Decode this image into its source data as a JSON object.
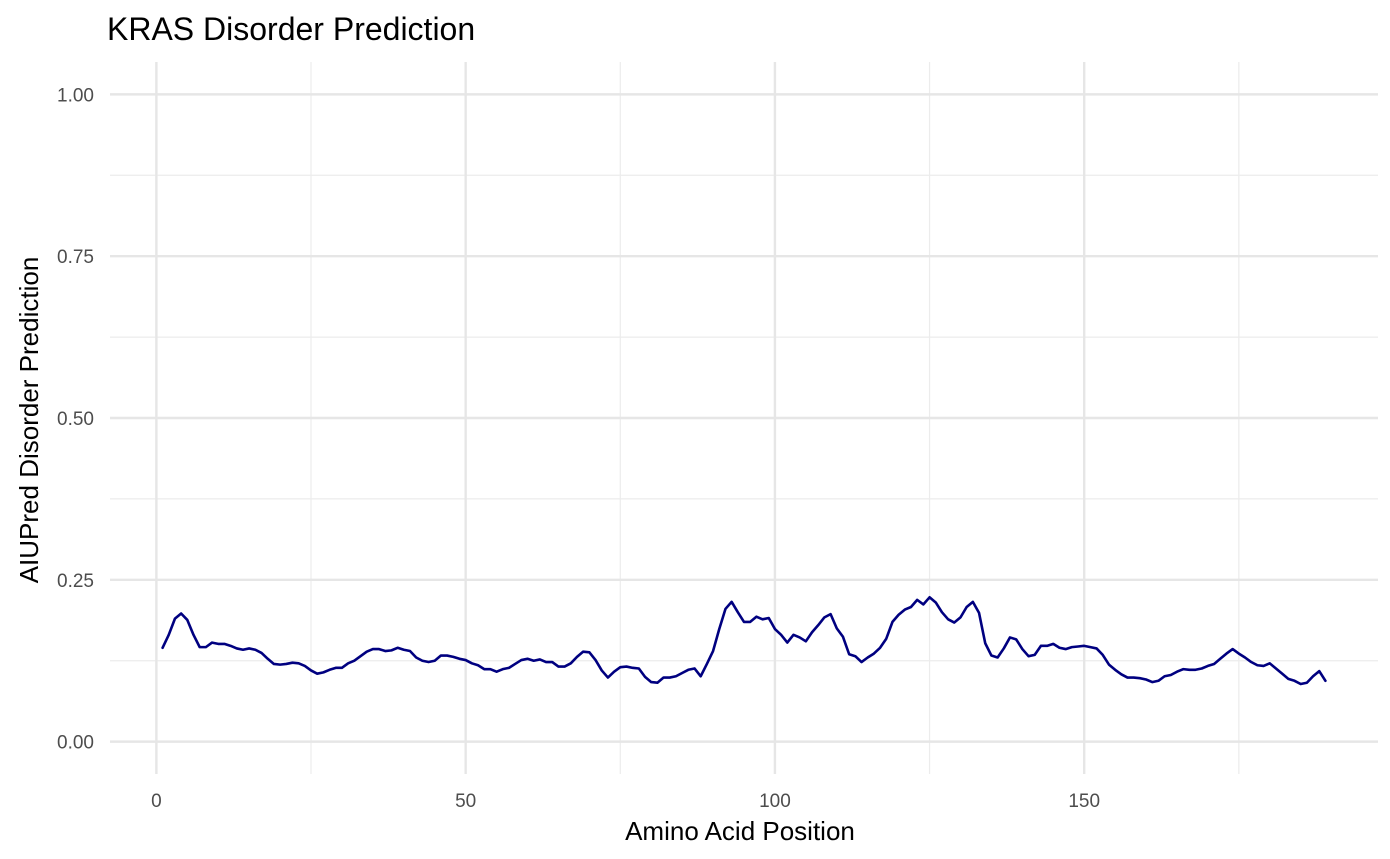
{
  "chart_data": {
    "type": "line",
    "title": "KRAS Disorder Prediction",
    "xlabel": "Amino Acid Position",
    "ylabel": "AIUPred Disorder Prediction",
    "xlim": [
      -7.5,
      197.5
    ],
    "ylim": [
      -0.05,
      1.05
    ],
    "x_ticks": [
      0,
      50,
      100,
      150
    ],
    "x_tick_labels": [
      "0",
      "50",
      "100",
      "150"
    ],
    "x_minor_ticks": [
      25,
      75,
      125,
      175
    ],
    "y_ticks": [
      0,
      0.25,
      0.5,
      0.75,
      1.0
    ],
    "y_tick_labels": [
      "0.00",
      "0.25",
      "0.50",
      "0.75",
      "1.00"
    ],
    "y_minor_ticks": [
      0.125,
      0.375,
      0.625,
      0.875
    ],
    "grid": true,
    "legend": "none",
    "series": [
      {
        "color": "#000080",
        "x": [
          1,
          2,
          3,
          4,
          5,
          6,
          7,
          8,
          9,
          10,
          11,
          12,
          13,
          14,
          15,
          16,
          17,
          18,
          19,
          20,
          21,
          22,
          23,
          24,
          25,
          26,
          27,
          28,
          29,
          30,
          31,
          32,
          33,
          34,
          35,
          36,
          37,
          38,
          39,
          40,
          41,
          42,
          43,
          44,
          45,
          46,
          47,
          48,
          49,
          50,
          51,
          52,
          53,
          54,
          55,
          56,
          57,
          58,
          59,
          60,
          61,
          62,
          63,
          64,
          65,
          66,
          67,
          68,
          69,
          70,
          71,
          72,
          73,
          74,
          75,
          76,
          77,
          78,
          79,
          80,
          81,
          82,
          83,
          84,
          85,
          86,
          87,
          88,
          89,
          90,
          91,
          92,
          93,
          94,
          95,
          96,
          97,
          98,
          99,
          100,
          101,
          102,
          103,
          104,
          105,
          106,
          107,
          108,
          109,
          110,
          111,
          112,
          113,
          114,
          115,
          116,
          117,
          118,
          119,
          120,
          121,
          122,
          123,
          124,
          125,
          126,
          127,
          128,
          129,
          130,
          131,
          132,
          133,
          134,
          135,
          136,
          137,
          138,
          139,
          140,
          141,
          142,
          143,
          144,
          145,
          146,
          147,
          148,
          149,
          150,
          151,
          152,
          153,
          154,
          155,
          156,
          157,
          158,
          159,
          160,
          161,
          162,
          163,
          164,
          165,
          166,
          167,
          168,
          169,
          170,
          171,
          172,
          173,
          174,
          175,
          176,
          177,
          178,
          179,
          180,
          181,
          182,
          183,
          184,
          185,
          186,
          187,
          188,
          189
        ],
        "y": [
          0.145,
          0.165,
          0.19,
          0.198,
          0.188,
          0.165,
          0.146,
          0.146,
          0.153,
          0.151,
          0.151,
          0.148,
          0.144,
          0.142,
          0.144,
          0.142,
          0.137,
          0.128,
          0.12,
          0.119,
          0.12,
          0.122,
          0.121,
          0.117,
          0.11,
          0.105,
          0.107,
          0.111,
          0.114,
          0.114,
          0.121,
          0.125,
          0.132,
          0.139,
          0.143,
          0.143,
          0.14,
          0.141,
          0.145,
          0.142,
          0.14,
          0.13,
          0.125,
          0.123,
          0.125,
          0.133,
          0.133,
          0.131,
          0.128,
          0.126,
          0.121,
          0.118,
          0.112,
          0.112,
          0.108,
          0.112,
          0.114,
          0.12,
          0.126,
          0.128,
          0.125,
          0.127,
          0.123,
          0.123,
          0.116,
          0.116,
          0.121,
          0.131,
          0.139,
          0.138,
          0.126,
          0.11,
          0.099,
          0.108,
          0.115,
          0.116,
          0.114,
          0.113,
          0.1,
          0.092,
          0.091,
          0.099,
          0.099,
          0.101,
          0.106,
          0.111,
          0.113,
          0.101,
          0.12,
          0.14,
          0.174,
          0.205,
          0.216,
          0.2,
          0.185,
          0.185,
          0.193,
          0.189,
          0.191,
          0.174,
          0.165,
          0.153,
          0.165,
          0.161,
          0.155,
          0.169,
          0.18,
          0.192,
          0.197,
          0.175,
          0.162,
          0.135,
          0.132,
          0.123,
          0.13,
          0.136,
          0.145,
          0.159,
          0.185,
          0.196,
          0.204,
          0.208,
          0.219,
          0.212,
          0.223,
          0.215,
          0.2,
          0.189,
          0.184,
          0.192,
          0.208,
          0.216,
          0.199,
          0.152,
          0.133,
          0.13,
          0.144,
          0.161,
          0.158,
          0.143,
          0.132,
          0.134,
          0.148,
          0.148,
          0.151,
          0.145,
          0.143,
          0.146,
          0.147,
          0.148,
          0.146,
          0.144,
          0.134,
          0.119,
          0.111,
          0.104,
          0.099,
          0.099,
          0.098,
          0.096,
          0.092,
          0.094,
          0.101,
          0.103,
          0.108,
          0.112,
          0.111,
          0.111,
          0.113,
          0.117,
          0.12,
          0.128,
          0.136,
          0.143,
          0.136,
          0.13,
          0.123,
          0.118,
          0.117,
          0.121,
          0.113,
          0.105,
          0.097,
          0.094,
          0.089,
          0.091,
          0.101,
          0.109,
          0.094
        ]
      }
    ]
  }
}
